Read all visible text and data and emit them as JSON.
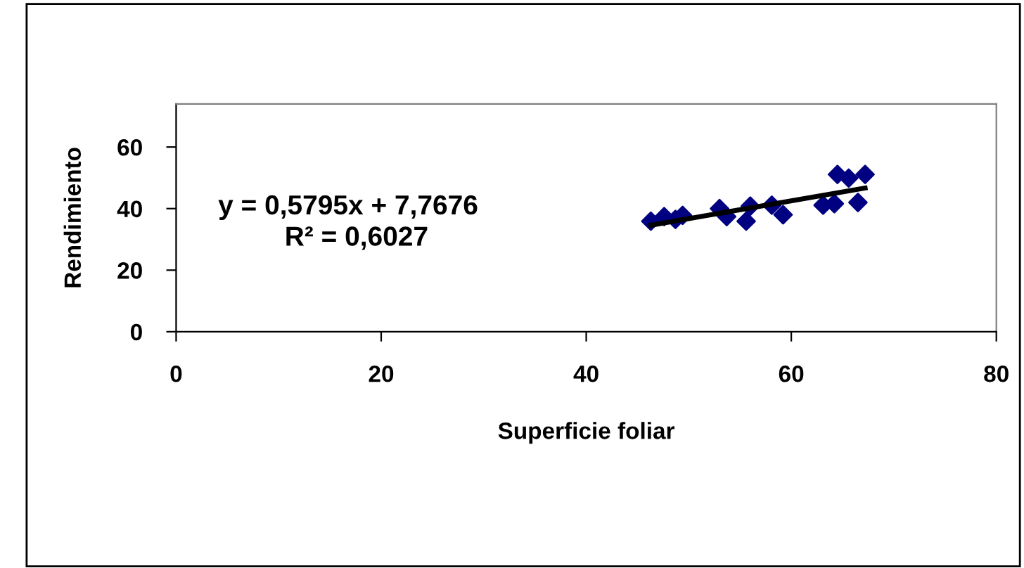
{
  "chart_data": {
    "type": "scatter",
    "xlabel": "Superficie foliar",
    "ylabel": "Rendimiento",
    "annotations": [
      "y = 0,5795x + 7,7676",
      "R² = 0,6027"
    ],
    "series": [
      {
        "color": "#000080",
        "marker": "diamond",
        "x": [
          46.3,
          47.6,
          48.7,
          49.4,
          53.0,
          53.7,
          55.6,
          56.0,
          58.1,
          59.2,
          63.1,
          64.2,
          64.5,
          65.6,
          66.5,
          67.2
        ],
        "values": [
          35.9,
          37.4,
          36.5,
          37.8,
          40.0,
          37.4,
          35.9,
          40.8,
          41.1,
          38.0,
          41.1,
          41.6,
          51.1,
          49.9,
          42.0,
          51.1
        ]
      },
      {
        "type": "line",
        "color": "#000000",
        "x": [
          46.3,
          67.2
        ],
        "values": [
          34.6,
          46.7
        ]
      }
    ],
    "xlim": [
      0,
      80
    ],
    "xticks": [
      0,
      20,
      40,
      60,
      80
    ],
    "ylim": [
      0,
      74
    ],
    "yticks": [
      0,
      20,
      40,
      60
    ],
    "grid": false,
    "legend": false
  }
}
